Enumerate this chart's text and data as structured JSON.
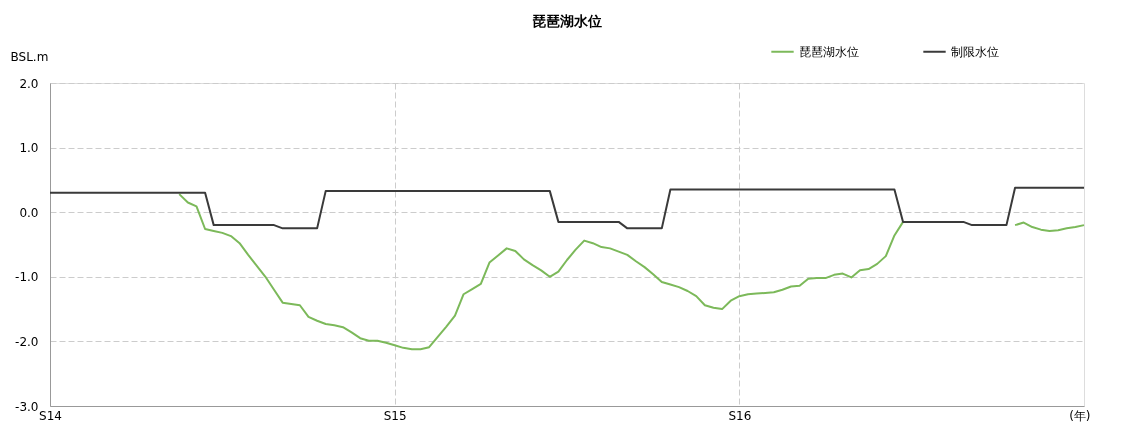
{
  "chart_data": {
    "type": "line",
    "title": "琵琶湖水位",
    "ylabel": "BSL.m",
    "xlabel": "(年)",
    "categories": [
      "S14",
      null,
      null,
      null,
      null,
      null,
      null,
      null,
      null,
      null,
      null,
      null,
      null,
      null,
      null,
      null,
      null,
      null,
      null,
      null,
      null,
      null,
      null,
      null,
      null,
      null,
      null,
      null,
      null,
      null,
      null,
      null,
      null,
      null,
      null,
      null,
      null,
      null,
      null,
      null,
      "S15",
      null,
      null,
      null,
      null,
      null,
      null,
      null,
      null,
      null,
      null,
      null,
      null,
      null,
      null,
      null,
      null,
      null,
      null,
      null,
      null,
      null,
      null,
      null,
      null,
      null,
      null,
      null,
      null,
      null,
      null,
      null,
      null,
      null,
      null,
      null,
      null,
      null,
      null,
      null,
      "S16",
      null,
      null,
      null,
      null,
      null,
      null,
      null,
      null,
      null,
      null,
      null,
      null,
      null,
      null,
      null,
      null,
      null,
      null,
      null,
      null,
      null,
      null,
      null,
      null,
      null,
      null,
      null,
      null,
      null,
      null,
      null,
      null,
      null,
      null,
      null,
      null,
      null,
      null,
      null,
      null
    ],
    "ylim": [
      -3,
      2
    ],
    "yticks": [
      {
        "value": -3,
        "label": "-3.0"
      },
      {
        "value": -2,
        "label": "-2.0"
      },
      {
        "value": -1,
        "label": "-1.0"
      },
      {
        "value": 0,
        "label": "0.0"
      },
      {
        "value": 1,
        "label": "1.0"
      },
      {
        "value": 2,
        "label": "2.0"
      }
    ],
    "grid": true,
    "legend": "top right",
    "line_style": "solid",
    "marker": "none",
    "series": [
      {
        "name": "琵琶湖水位",
        "color": "#7cb95a",
        "values": [
          null,
          null,
          null,
          null,
          null,
          null,
          null,
          null,
          null,
          null,
          null,
          null,
          null,
          null,
          null,
          0.28,
          0.15,
          0.09,
          -0.26,
          -0.29,
          -0.32,
          -0.37,
          -0.48,
          -0.66,
          -0.83,
          -1.0,
          -1.2,
          -1.4,
          -1.42,
          -1.44,
          -1.62,
          -1.68,
          -1.73,
          -1.75,
          -1.78,
          -1.86,
          -1.95,
          -1.99,
          -1.99,
          -2.02,
          -2.06,
          -2.1,
          -2.12,
          -2.12,
          -2.09,
          -1.93,
          -1.77,
          -1.6,
          -1.27,
          -1.19,
          -1.11,
          -0.78,
          -0.67,
          -0.56,
          -0.6,
          -0.73,
          -0.82,
          -0.9,
          -1.0,
          -0.92,
          -0.74,
          -0.58,
          -0.44,
          -0.48,
          -0.54,
          -0.56,
          -0.61,
          -0.66,
          -0.76,
          -0.85,
          -0.96,
          -1.08,
          -1.12,
          -1.16,
          -1.22,
          -1.3,
          -1.44,
          -1.48,
          -1.5,
          -1.37,
          -1.3,
          -1.27,
          -1.26,
          -1.25,
          -1.24,
          -1.2,
          -1.15,
          -1.14,
          -1.03,
          -1.02,
          -1.02,
          -0.97,
          -0.95,
          -1.01,
          -0.9,
          -0.88,
          -0.8,
          -0.68,
          -0.36,
          -0.15,
          null,
          null,
          null,
          null,
          null,
          null,
          null,
          null,
          null,
          null,
          null,
          null,
          -0.2,
          -0.16,
          -0.23,
          -0.27,
          -0.29,
          -0.28,
          -0.25,
          -0.23,
          -0.2
        ]
      },
      {
        "name": "制限水位",
        "color": "#3a3a3a",
        "values": [
          0.3,
          0.3,
          0.3,
          0.3,
          0.3,
          0.3,
          0.3,
          0.3,
          0.3,
          0.3,
          0.3,
          0.3,
          0.3,
          0.3,
          0.3,
          0.3,
          0.3,
          0.3,
          0.3,
          -0.2,
          -0.2,
          -0.2,
          -0.2,
          -0.2,
          -0.2,
          -0.2,
          -0.2,
          -0.25,
          -0.25,
          -0.25,
          -0.25,
          -0.25,
          0.33,
          0.33,
          0.33,
          0.33,
          0.33,
          0.33,
          0.33,
          0.33,
          0.33,
          0.33,
          0.33,
          0.33,
          0.33,
          0.33,
          0.33,
          0.33,
          0.33,
          0.33,
          0.33,
          0.33,
          0.33,
          0.33,
          0.33,
          0.33,
          0.33,
          0.33,
          0.33,
          -0.15,
          -0.15,
          -0.15,
          -0.15,
          -0.15,
          -0.15,
          -0.15,
          -0.15,
          -0.25,
          -0.25,
          -0.25,
          -0.25,
          -0.25,
          0.35,
          0.35,
          0.35,
          0.35,
          0.35,
          0.35,
          0.35,
          0.35,
          0.35,
          0.35,
          0.35,
          0.35,
          0.35,
          0.35,
          0.35,
          0.35,
          0.35,
          0.35,
          0.35,
          0.35,
          0.35,
          0.35,
          0.35,
          0.35,
          0.35,
          0.35,
          0.35,
          -0.15,
          -0.15,
          -0.15,
          -0.15,
          -0.15,
          -0.15,
          -0.15,
          -0.15,
          -0.2,
          -0.2,
          -0.2,
          -0.2,
          -0.2,
          0.38,
          0.38,
          0.38,
          0.38,
          0.38,
          0.38,
          0.38,
          0.38,
          0.38
        ]
      }
    ]
  }
}
